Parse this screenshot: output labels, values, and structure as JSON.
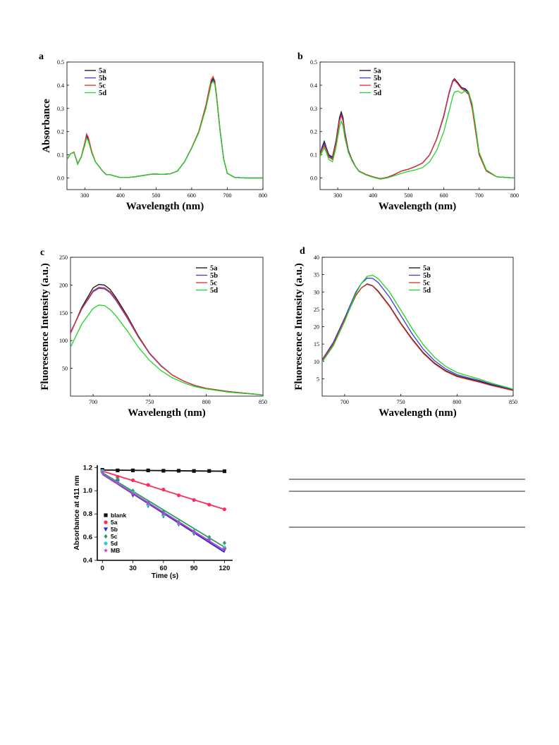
{
  "panels": [
    {
      "id": "a",
      "label": "a",
      "chart_data": {
        "type": "line",
        "xlabel": "Wavelength (nm)",
        "ylabel": "Absorbance",
        "xlim": [
          250,
          800
        ],
        "ylim": [
          -0.05,
          0.5
        ],
        "xticks": [
          300,
          400,
          500,
          600,
          700,
          800
        ],
        "yticks": [
          0.0,
          0.1,
          0.2,
          0.3,
          0.4,
          0.5
        ],
        "ytick_labels": [
          "0.0",
          "0.1",
          "0.2",
          "0.3",
          "0.4",
          "0.5"
        ],
        "legend_position": "top-left",
        "x": [
          250,
          260,
          270,
          280,
          290,
          300,
          305,
          310,
          320,
          330,
          340,
          350,
          360,
          370,
          380,
          400,
          420,
          440,
          460,
          480,
          490,
          500,
          520,
          540,
          560,
          580,
          600,
          620,
          640,
          650,
          655,
          660,
          665,
          670,
          680,
          690,
          700,
          720,
          750,
          800
        ],
        "series": [
          {
            "name": "5a",
            "color": "#111111",
            "values": [
              0.08,
              0.105,
              0.11,
              0.06,
              0.09,
              0.15,
              0.185,
              0.17,
              0.11,
              0.07,
              0.05,
              0.03,
              0.015,
              0.015,
              0.01,
              0.002,
              0.002,
              0.005,
              0.01,
              0.015,
              0.017,
              0.017,
              0.016,
              0.018,
              0.03,
              0.07,
              0.13,
              0.2,
              0.31,
              0.38,
              0.415,
              0.428,
              0.41,
              0.35,
              0.2,
              0.08,
              0.02,
              0.003,
              0.0,
              0.0
            ]
          },
          {
            "name": "5b",
            "color": "#3b3bd6",
            "values": [
              0.08,
              0.105,
              0.11,
              0.06,
              0.09,
              0.145,
              0.178,
              0.165,
              0.108,
              0.07,
              0.05,
              0.03,
              0.015,
              0.015,
              0.01,
              0.002,
              0.002,
              0.005,
              0.01,
              0.015,
              0.017,
              0.017,
              0.016,
              0.018,
              0.03,
              0.07,
              0.13,
              0.2,
              0.305,
              0.375,
              0.41,
              0.422,
              0.405,
              0.345,
              0.2,
              0.08,
              0.02,
              0.003,
              0.0,
              0.0
            ]
          },
          {
            "name": "5c",
            "color": "#e03030",
            "values": [
              0.08,
              0.105,
              0.112,
              0.062,
              0.092,
              0.152,
              0.19,
              0.175,
              0.112,
              0.07,
              0.05,
              0.03,
              0.015,
              0.015,
              0.01,
              0.002,
              0.002,
              0.005,
              0.01,
              0.015,
              0.017,
              0.017,
              0.016,
              0.018,
              0.03,
              0.07,
              0.13,
              0.2,
              0.315,
              0.39,
              0.425,
              0.437,
              0.418,
              0.355,
              0.205,
              0.08,
              0.02,
              0.003,
              0.0,
              0.0
            ]
          },
          {
            "name": "5d",
            "color": "#22d422",
            "values": [
              0.08,
              0.105,
              0.11,
              0.06,
              0.09,
              0.14,
              0.172,
              0.16,
              0.105,
              0.07,
              0.05,
              0.03,
              0.015,
              0.015,
              0.01,
              0.002,
              0.002,
              0.005,
              0.01,
              0.015,
              0.017,
              0.017,
              0.016,
              0.018,
              0.03,
              0.07,
              0.128,
              0.195,
              0.3,
              0.37,
              0.405,
              0.418,
              0.403,
              0.345,
              0.2,
              0.08,
              0.02,
              0.003,
              0.0,
              0.0
            ]
          }
        ]
      }
    },
    {
      "id": "b",
      "label": "b",
      "chart_data": {
        "type": "line",
        "xlabel": "Wavelength (nm)",
        "ylabel": "",
        "xlim": [
          250,
          800
        ],
        "ylim": [
          -0.05,
          0.5
        ],
        "xticks": [
          300,
          400,
          500,
          600,
          700,
          800
        ],
        "yticks": [
          0.0,
          0.1,
          0.2,
          0.3,
          0.4,
          0.5
        ],
        "ytick_labels": [
          "0.0",
          "0.1",
          "0.2",
          "0.3",
          "0.4",
          "0.5"
        ],
        "legend_position": "top-center",
        "x": [
          250,
          255,
          262,
          268,
          275,
          285,
          295,
          305,
          310,
          315,
          320,
          330,
          340,
          350,
          360,
          380,
          400,
          420,
          440,
          460,
          480,
          500,
          520,
          540,
          560,
          580,
          600,
          615,
          625,
          630,
          640,
          650,
          660,
          670,
          680,
          690,
          700,
          720,
          750,
          800
        ],
        "series": [
          {
            "name": "5a",
            "color": "#111111",
            "values": [
              0.1,
              0.13,
              0.158,
              0.13,
              0.1,
              0.09,
              0.16,
              0.26,
              0.285,
              0.26,
              0.2,
              0.12,
              0.08,
              0.05,
              0.03,
              0.015,
              0.005,
              -0.003,
              0.003,
              0.015,
              0.03,
              0.038,
              0.05,
              0.065,
              0.1,
              0.17,
              0.27,
              0.37,
              0.42,
              0.428,
              0.41,
              0.39,
              0.385,
              0.37,
              0.31,
              0.2,
              0.1,
              0.03,
              0.005,
              0.0
            ]
          },
          {
            "name": "5b",
            "color": "#3b3bd6",
            "values": [
              0.1,
              0.125,
              0.15,
              0.125,
              0.095,
              0.085,
              0.155,
              0.25,
              0.275,
              0.25,
              0.195,
              0.118,
              0.08,
              0.05,
              0.03,
              0.015,
              0.005,
              -0.003,
              0.003,
              0.015,
              0.03,
              0.038,
              0.05,
              0.065,
              0.1,
              0.168,
              0.265,
              0.365,
              0.415,
              0.422,
              0.405,
              0.385,
              0.38,
              0.365,
              0.305,
              0.2,
              0.1,
              0.03,
              0.005,
              0.0
            ]
          },
          {
            "name": "5c",
            "color": "#e03030",
            "values": [
              0.1,
              0.12,
              0.14,
              0.12,
              0.09,
              0.08,
              0.15,
              0.245,
              0.27,
              0.245,
              0.19,
              0.115,
              0.078,
              0.05,
              0.03,
              0.015,
              0.005,
              -0.003,
              0.003,
              0.015,
              0.03,
              0.038,
              0.05,
              0.065,
              0.1,
              0.17,
              0.27,
              0.37,
              0.42,
              0.425,
              0.405,
              0.385,
              0.375,
              0.36,
              0.3,
              0.2,
              0.1,
              0.03,
              0.005,
              0.0
            ]
          },
          {
            "name": "5d",
            "color": "#22d422",
            "values": [
              0.09,
              0.11,
              0.13,
              0.11,
              0.08,
              0.07,
              0.13,
              0.22,
              0.245,
              0.225,
              0.175,
              0.11,
              0.075,
              0.048,
              0.028,
              0.013,
              0.003,
              -0.005,
              0.0,
              0.01,
              0.02,
              0.028,
              0.035,
              0.045,
              0.07,
              0.12,
              0.2,
              0.29,
              0.35,
              0.37,
              0.375,
              0.365,
              0.375,
              0.37,
              0.32,
              0.22,
              0.11,
              0.035,
              0.005,
              0.0
            ]
          }
        ]
      }
    },
    {
      "id": "c",
      "label": "c",
      "chart_data": {
        "type": "line",
        "xlabel": "Wavelength (nm)",
        "ylabel": "Fluorescence Intensity (a.u.)",
        "xlim": [
          680,
          850
        ],
        "ylim": [
          0,
          250
        ],
        "xticks": [
          700,
          750,
          800,
          850
        ],
        "yticks": [
          50,
          100,
          150,
          200,
          250
        ],
        "ytick_labels": [
          "50",
          "100",
          "150",
          "200",
          "250"
        ],
        "legend_position": "top-right",
        "x": [
          680,
          690,
          700,
          705,
          710,
          715,
          720,
          730,
          740,
          750,
          760,
          770,
          780,
          790,
          800,
          820,
          850
        ],
        "series": [
          {
            "name": "5a",
            "color": "#111111",
            "values": [
              113,
              160,
              195,
              201,
              200,
              192,
              178,
              145,
              108,
              77,
              55,
              38,
              27,
              19,
              14,
              8,
              2
            ]
          },
          {
            "name": "5b",
            "color": "#3b3bd6",
            "values": [
              115,
              157,
              188,
              194,
              193,
              186,
              173,
              141,
              106,
              76,
              54,
              38,
              27,
              19,
              14,
              8,
              2
            ]
          },
          {
            "name": "5c",
            "color": "#e03030",
            "values": [
              113,
              158,
              190,
              196,
              195,
              188,
              175,
              143,
              107,
              77,
              55,
              38,
              27,
              19,
              14,
              8,
              2
            ]
          },
          {
            "name": "5d",
            "color": "#22d422",
            "values": [
              88,
              130,
              158,
              164,
              163,
              156,
              145,
              118,
              88,
              64,
              46,
              33,
              24,
              17,
              13,
              7,
              2
            ]
          }
        ]
      }
    },
    {
      "id": "d",
      "label": "d",
      "chart_data": {
        "type": "line",
        "xlabel": "Wavelength (nm)",
        "ylabel": "Fluorescence Intensity (a.u.)",
        "xlim": [
          680,
          850
        ],
        "ylim": [
          0,
          40
        ],
        "xticks": [
          700,
          750,
          800,
          850
        ],
        "yticks": [
          5,
          10,
          15,
          20,
          25,
          30,
          35,
          40
        ],
        "ytick_labels": [
          "5",
          "10",
          "15",
          "20",
          "25",
          "30",
          "35",
          "40"
        ],
        "legend_position": "top-center",
        "x": [
          680,
          690,
          700,
          710,
          715,
          720,
          725,
          730,
          740,
          750,
          760,
          770,
          780,
          790,
          800,
          810,
          820,
          830,
          850
        ],
        "series": [
          {
            "name": "5a",
            "color": "#111111",
            "values": [
              10.2,
              15,
              22,
              29,
              31.2,
              32.3,
              31.8,
              30.2,
              26,
              21,
              16.5,
              12.5,
              9.5,
              7.3,
              5.8,
              5,
              4.2,
              3.3,
              1.8
            ]
          },
          {
            "name": "5b",
            "color": "#3b3bd6",
            "values": [
              10.5,
              15.5,
              22.5,
              30,
              32.5,
              34,
              33.9,
              32.7,
              28.5,
              23.2,
              18,
              13.5,
              10.2,
              7.8,
              6.2,
              5.3,
              4.5,
              3.5,
              1.9
            ]
          },
          {
            "name": "5c",
            "color": "#e03030",
            "values": [
              10.2,
              15,
              22,
              29,
              31.2,
              32.2,
              31.7,
              30,
              25.8,
              20.8,
              16.3,
              12.3,
              9.3,
              7.1,
              5.6,
              4.8,
              4,
              3.1,
              1.6
            ]
          },
          {
            "name": "5d",
            "color": "#22d422",
            "values": [
              9.8,
              14.5,
              21.5,
              29.5,
              32.5,
              34.5,
              34.8,
              33.8,
              30,
              24.8,
              19.5,
              14.8,
              11.2,
              8.5,
              6.8,
              5.8,
              4.9,
              3.8,
              2
            ]
          }
        ]
      }
    },
    {
      "id": "e",
      "label": "",
      "chart_data": {
        "type": "scatter",
        "xlabel": "Time (s)",
        "ylabel": "Absorbance at 411 nm",
        "xlim": [
          -5,
          128
        ],
        "ylim": [
          0.4,
          1.22
        ],
        "xticks": [
          0,
          30,
          60,
          90,
          120
        ],
        "yticks": [
          0.4,
          0.6,
          0.8,
          1.0,
          1.2
        ],
        "ytick_labels": [
          "0.4",
          "0.6",
          "0.8",
          "1.0",
          "1.2"
        ],
        "legend_position": "bottom-left",
        "x": [
          0,
          15,
          30,
          45,
          60,
          75,
          90,
          105,
          120
        ],
        "series": [
          {
            "name": "blank",
            "color": "#111111",
            "marker": "square",
            "values": [
              1.18,
              1.175,
              1.175,
              1.175,
              1.172,
              1.172,
              1.17,
              1.17,
              1.168
            ]
          },
          {
            "name": "5a",
            "color": "#ff2a5f",
            "marker": "circle",
            "values": [
              1.17,
              1.12,
              1.09,
              1.05,
              1.01,
              0.96,
              0.92,
              0.88,
              0.84
            ]
          },
          {
            "name": "5b",
            "color": "#2a2ad6",
            "marker": "triangle-down",
            "values": [
              1.16,
              1.08,
              0.96,
              0.87,
              0.78,
              0.71,
              0.63,
              0.57,
              0.49
            ]
          },
          {
            "name": "5c",
            "color": "#2ca060",
            "marker": "diamond",
            "values": [
              1.16,
              1.1,
              1.0,
              0.9,
              0.82,
              0.73,
              0.65,
              0.6,
              0.55
            ]
          },
          {
            "name": "5d",
            "color": "#1fd6d6",
            "marker": "circle",
            "values": [
              1.17,
              1.07,
              0.98,
              0.88,
              0.79,
              0.72,
              0.64,
              0.58,
              0.51
            ]
          },
          {
            "name": "MB",
            "color": "#c040c0",
            "marker": "star",
            "values": [
              1.16,
              1.07,
              0.97,
              0.89,
              0.8,
              0.72,
              0.64,
              0.58,
              0.5
            ]
          }
        ]
      }
    }
  ]
}
